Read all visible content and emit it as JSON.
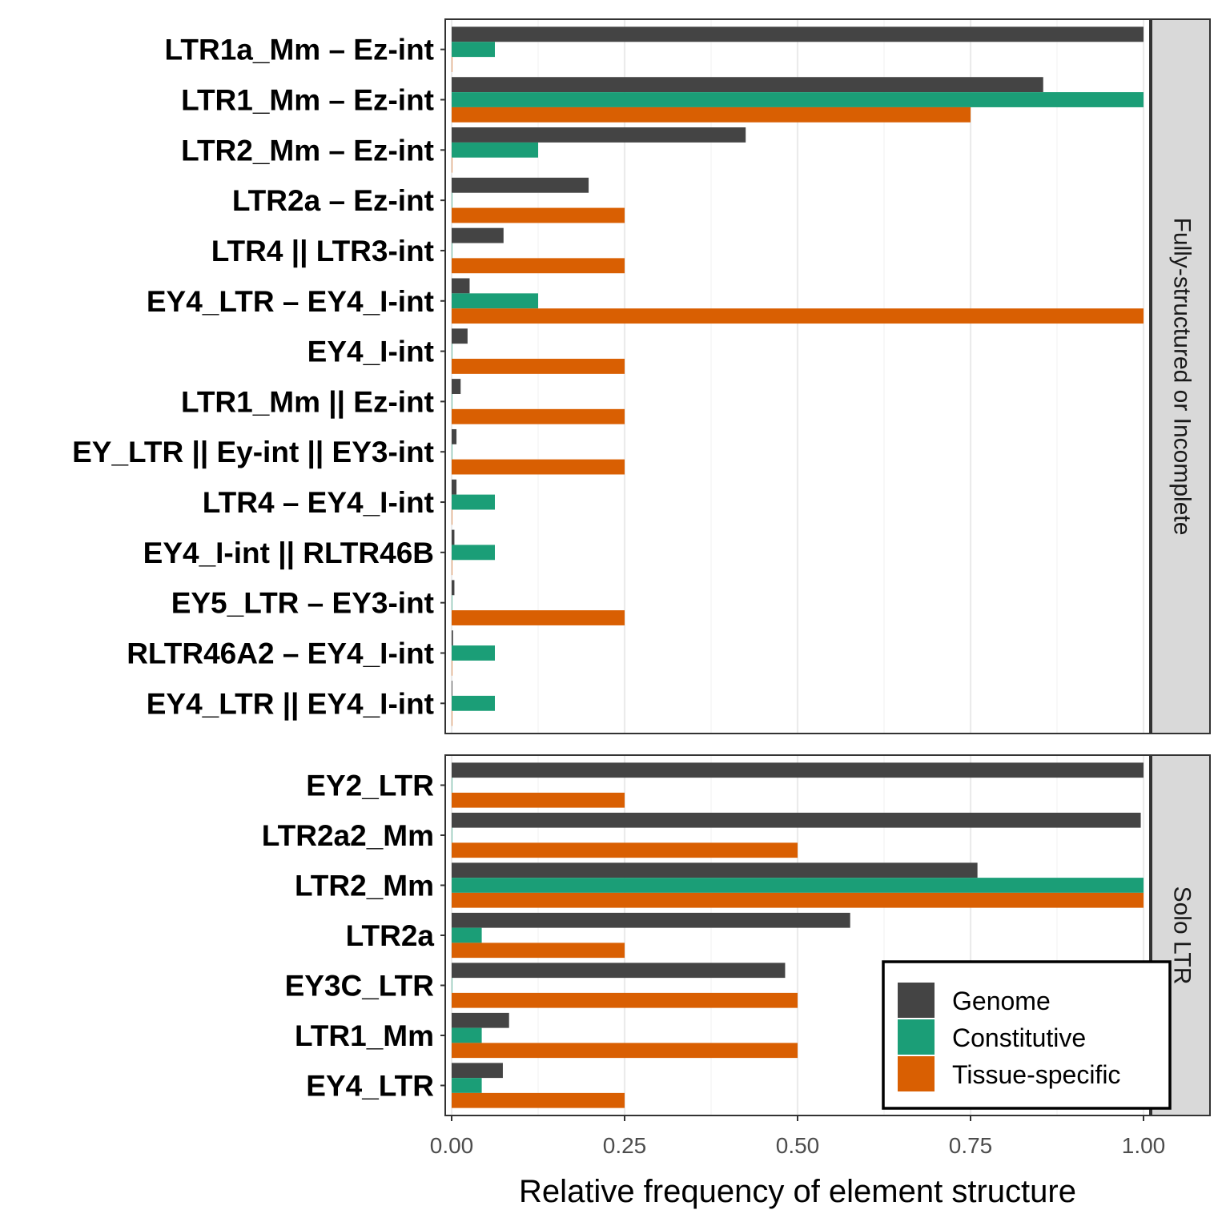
{
  "chart_data": {
    "type": "bar",
    "orientation": "horizontal",
    "xlabel": "Relative frequency of element structure",
    "ylabel": "",
    "xlim": [
      0,
      1
    ],
    "x_ticks": [
      "0.00",
      "0.25",
      "0.50",
      "0.75",
      "1.00"
    ],
    "grid": true,
    "legend_position": "bottom-right",
    "series": [
      {
        "name": "Genome",
        "color": "#444444"
      },
      {
        "name": "Constitutive",
        "color": "#1b9e77"
      },
      {
        "name": "Tissue-specific",
        "color": "#d95f02"
      }
    ],
    "panels": [
      {
        "strip": "Fully-structured or Incomplete",
        "categories": [
          "LTR1a_Mm – Ez-int",
          "LTR1_Mm – Ez-int",
          "LTR2_Mm – Ez-int",
          "LTR2a – Ez-int",
          "LTR4 || LTR3-int",
          "EY4_LTR – EY4_I-int",
          "EY4_I-int",
          "LTR1_Mm || Ez-int",
          "EY_LTR || Ey-int || EY3-int",
          "LTR4 – EY4_I-int",
          "EY4_I-int || RLTR46B",
          "EY5_LTR – EY3-int",
          "RLTR46A2 – EY4_I-int",
          "EY4_LTR || EY4_I-int"
        ],
        "values": {
          "Genome": [
            1.0,
            0.855,
            0.425,
            0.198,
            0.075,
            0.026,
            0.023,
            0.013,
            0.007,
            0.007,
            0.004,
            0.004,
            0.002,
            0.001
          ],
          "Constitutive": [
            0.0625,
            1.0,
            0.125,
            0.0,
            0.0,
            0.125,
            0.0,
            0.0,
            0.0,
            0.0625,
            0.0625,
            0.0,
            0.0625,
            0.0625
          ],
          "Tissue-specific": [
            0.0,
            0.75,
            0.0,
            0.25,
            0.25,
            1.0,
            0.25,
            0.25,
            0.25,
            0.0,
            0.0,
            0.25,
            0.0,
            0.0
          ]
        }
      },
      {
        "strip": "Solo LTR",
        "categories": [
          "EY2_LTR",
          "LTR2a2_Mm",
          "LTR2_Mm",
          "LTR2a",
          "EY3C_LTR",
          "LTR1_Mm",
          "EY4_LTR"
        ],
        "values": {
          "Genome": [
            1.0,
            0.996,
            0.76,
            0.576,
            0.482,
            0.083,
            0.074
          ],
          "Constitutive": [
            0.0,
            0.0,
            1.0,
            0.0435,
            0.0,
            0.0435,
            0.0435
          ],
          "Tissue-specific": [
            0.25,
            0.5,
            1.0,
            0.25,
            0.5,
            0.5,
            0.25
          ]
        }
      }
    ]
  }
}
